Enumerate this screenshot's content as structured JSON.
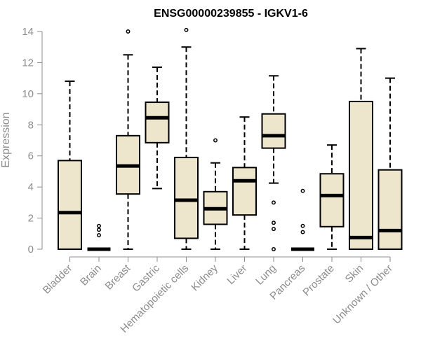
{
  "chart_data": {
    "type": "boxplot",
    "title": "ENSG00000239855 - IGKV1-6",
    "xlabel": "",
    "ylabel": "Expression",
    "ylim": [
      0,
      14
    ],
    "yticks": [
      0,
      2,
      4,
      6,
      8,
      10,
      12,
      14
    ],
    "grid": false,
    "legend": "none",
    "colors": {
      "box_fill": "#ede6cc",
      "box_stroke": "#000000",
      "axis": "#8c8c8c",
      "text": "#8c8c8c"
    },
    "categories": [
      "Bladder",
      "Brain",
      "Breast",
      "Gastric",
      "Hematopoietic cells",
      "Kidney",
      "Liver",
      "Lung",
      "Pancreas",
      "Prostate",
      "Skin",
      "Unknown / Other"
    ],
    "boxes": [
      {
        "category": "Bladder",
        "whisker_low": 0,
        "q1": 0,
        "median": 2.35,
        "q3": 5.7,
        "whisker_high": 10.8,
        "outliers": []
      },
      {
        "category": "Brain",
        "whisker_low": 0,
        "q1": 0,
        "median": 0,
        "q3": 0,
        "whisker_high": 0,
        "outliers": [
          0.9,
          1.25,
          1.5
        ]
      },
      {
        "category": "Breast",
        "whisker_low": 0,
        "q1": 3.55,
        "median": 5.35,
        "q3": 7.3,
        "whisker_high": 12.5,
        "outliers": [
          14.0
        ]
      },
      {
        "category": "Gastric",
        "whisker_low": 3.9,
        "q1": 6.85,
        "median": 8.45,
        "q3": 9.45,
        "whisker_high": 11.7,
        "outliers": []
      },
      {
        "category": "Hematopoietic cells",
        "whisker_low": 0,
        "q1": 0.7,
        "median": 3.15,
        "q3": 5.9,
        "whisker_high": 13.0,
        "outliers": [
          14.1
        ]
      },
      {
        "category": "Kidney",
        "whisker_low": 0,
        "q1": 1.6,
        "median": 2.6,
        "q3": 3.7,
        "whisker_high": 5.55,
        "outliers": [
          7.0
        ]
      },
      {
        "category": "Liver",
        "whisker_low": 0,
        "q1": 2.2,
        "median": 4.4,
        "q3": 5.25,
        "whisker_high": 8.5,
        "outliers": []
      },
      {
        "category": "Lung",
        "whisker_low": 4.25,
        "q1": 6.5,
        "median": 7.3,
        "q3": 8.7,
        "whisker_high": 11.15,
        "outliers": [
          3.0,
          1.7,
          1.3,
          0
        ]
      },
      {
        "category": "Pancreas",
        "whisker_low": 0,
        "q1": 0,
        "median": 0,
        "q3": 0,
        "whisker_high": 0,
        "outliers": [
          3.75,
          1.5,
          1.1
        ]
      },
      {
        "category": "Prostate",
        "whisker_low": 0,
        "q1": 1.45,
        "median": 3.45,
        "q3": 4.85,
        "whisker_high": 6.7,
        "outliers": []
      },
      {
        "category": "Skin",
        "whisker_low": 0,
        "q1": 0,
        "median": 0.75,
        "q3": 9.5,
        "whisker_high": 12.9,
        "outliers": []
      },
      {
        "category": "Unknown / Other",
        "whisker_low": 0,
        "q1": 0,
        "median": 1.2,
        "q3": 5.1,
        "whisker_high": 11.0,
        "outliers": []
      }
    ]
  }
}
